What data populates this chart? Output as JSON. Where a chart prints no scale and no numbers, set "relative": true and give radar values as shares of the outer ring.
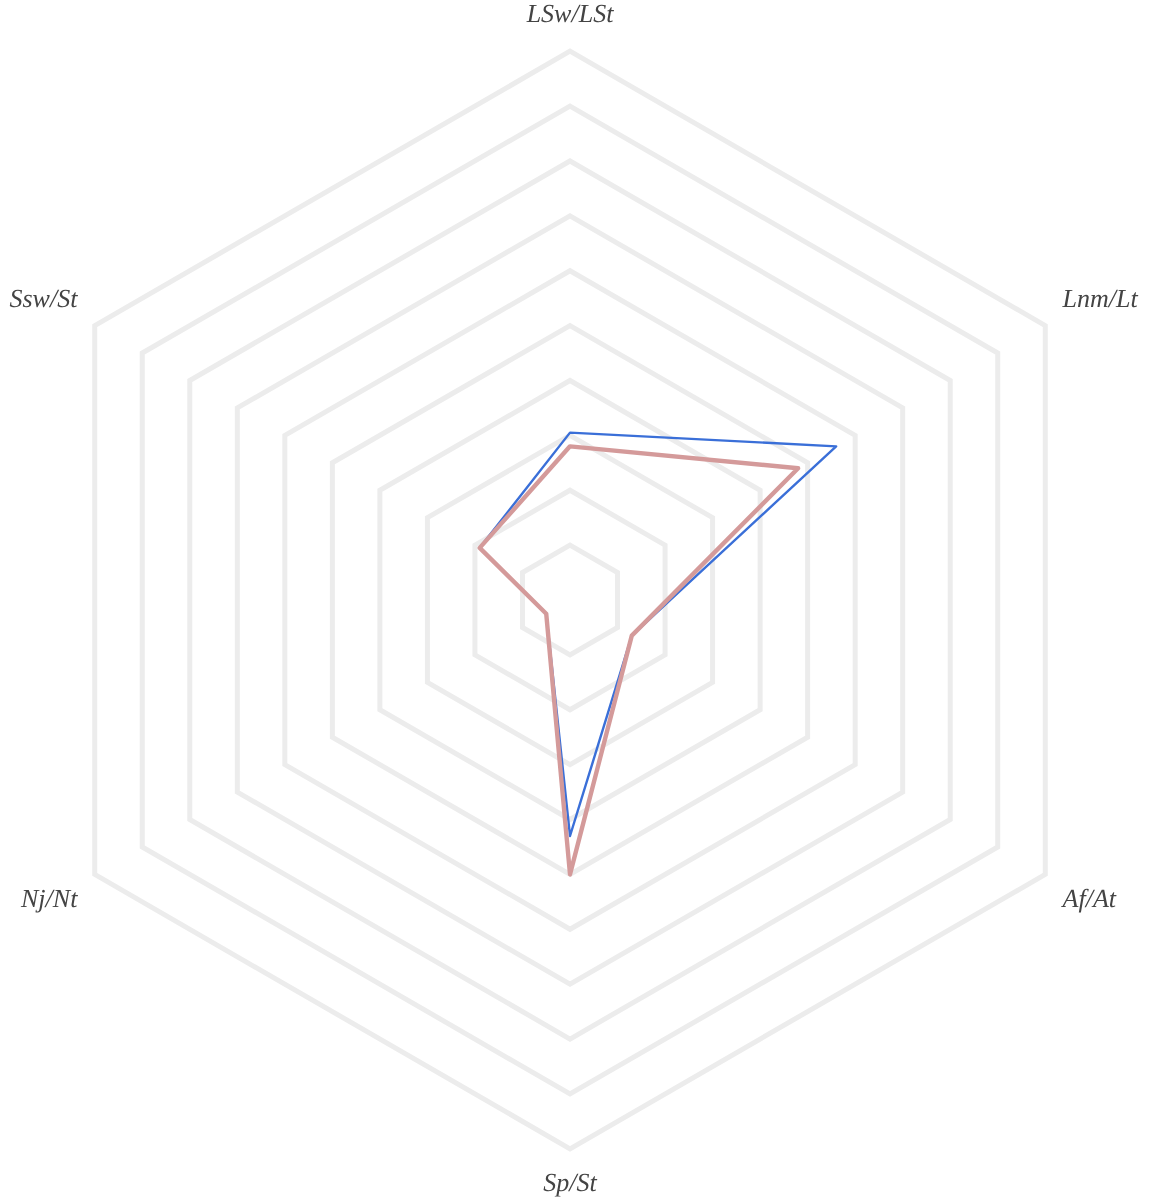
{
  "chart_data": {
    "type": "radar",
    "relative": true,
    "categories": [
      "LSw/LSt",
      "Lnm/Lt",
      "Af/At",
      "Sp/St",
      "Nj/Nt",
      "Ssw/St"
    ],
    "series": [
      {
        "color": "#d49a9a",
        "values": [
          0.28,
          0.48,
          0.13,
          0.5,
          0.05,
          0.19
        ]
      },
      {
        "color": "#3a6fd8",
        "values": [
          0.305,
          0.56,
          0.13,
          0.43,
          0.05,
          0.19
        ]
      }
    ],
    "grid": true,
    "legend": false,
    "marker": "none"
  }
}
